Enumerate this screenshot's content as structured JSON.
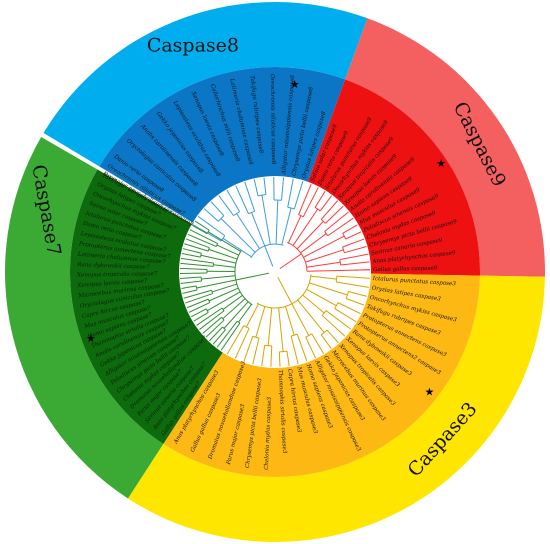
{
  "figure": {
    "clades": [
      {
        "id": "caspase8",
        "label": "Caspase8",
        "outer_color": "#00aeef",
        "inner_color": "#0b76c6",
        "branch_color": "#3c9be3",
        "marker": "★",
        "leaves": [
          "Dromaius novaehollandiae caspase8",
          "Danio rerio caspase8",
          "Oryctolagus cuniculus caspase8",
          "Anolis carolinensis caspase8",
          "Gekko japonicus caspase8",
          "Lepisosteus oculatus caspase8",
          "Xenopus laevis caspase8",
          "Callorhinchus milii caspase8",
          "Latimeria chalumnae caspase8",
          "Takifugu rubripes caspase8",
          "Oreochromis niloticus caspase8",
          "Alligator mississippiensis caspase8",
          "Chrysemys picta bellii caspase8",
          "Oryzias latipes caspase8"
        ]
      },
      {
        "id": "caspase9",
        "label": "Caspase9",
        "outer_color": "#f46060",
        "inner_color": "#ee1111",
        "branch_color": "#ff3b3b",
        "marker": "★",
        "leaves": [
          "Salmo salar caspase9",
          "Danio rerio caspase9",
          "Ictalurus punctatus caspase9",
          "Oncorhynchus mykiss caspase9",
          "Xenopus tropicalis caspase9",
          "Xenopus laevis caspase9",
          "Anolis carolinensis caspase9",
          "Homo sapiens caspase9",
          "Mus musculus caspase9",
          "Pelodiscus sinensis caspase9",
          "Chelonia mydas caspase9",
          "Chrysemys picta bellii caspase9",
          "Serinus canaria caspase9",
          "Anas platyrhynchos caspase9",
          "Gallus gallus caspase9"
        ]
      },
      {
        "id": "caspase3",
        "label": "Caspase3",
        "outer_color": "#ffe600",
        "inner_color": "#fdb813",
        "branch_color": "#d9a300",
        "marker": "★",
        "leaves": [
          "Ictalurus punctatus caspase3",
          "Oryzias latipes caspase3",
          "Oncorhynchus mykiss caspase3",
          "Takifugu rubripes caspase3",
          "Protopterus annectens caspase3",
          "Protopterus annectens2 caspase3",
          "Rana dybowskii caspase3",
          "Xenopus laevis caspase3",
          "Xenopus tropicalis caspase3",
          "Microcebus murinus caspase3",
          "Gekko japonicus caspase3",
          "Alligator mississippiensis caspase3",
          "Homo sapiens caspase3",
          "Mus musculus caspase3",
          "Capra hircus caspase3",
          "Thamnophis sirtalis caspase3",
          "Chelonia mydas caspase3",
          "Chrysemys picta bellii caspase3",
          "Parus major caspase3",
          "Dromaius novaehollandiae caspase3",
          "Gallus gallus caspase3",
          "Anas platyrhynchos caspase3"
        ]
      },
      {
        "id": "caspase7",
        "label": "Caspase7",
        "outer_color": "#3aaa35",
        "inner_color": "#0d6b0d",
        "branch_color": "#2f8f2f",
        "marker": "★",
        "leaves": [
          "Gallus gallus caspase7",
          "Anas platyrhynchos caspase7",
          "Serinus canaria caspase7",
          "Parus major caspase7",
          "Dromaius novaehollandiae caspase7",
          "Chelonia mydas caspase7",
          "Chrysemys picta bellii caspase7",
          "Pelodiscus sinensis caspase7",
          "Alligator mississippiensis caspase7",
          "Gekko japonicus caspase7",
          "Anolis carolinensis caspase7",
          "Thamnophis sirtalis caspase7",
          "Homo sapiens caspase7",
          "Mus musculus caspase7",
          "Capra hircus caspase7",
          "Oryctolagus cuniculus caspase7",
          "Microcebus murinus caspase7",
          "Xenopus laevis caspase7",
          "Xenopus tropicalis caspase7",
          "Rana dybowskii caspase7",
          "Latimeria chalumnae caspase7",
          "Protopterus annectens caspase7",
          "Lepisosteus oculatus caspase7",
          "Danio rerio caspase7",
          "Ictalurus punctatus caspase7",
          "Salmo salar caspase7",
          "Oncorhynchus mykiss caspase7",
          "Oryzias latipes caspase7",
          "Takifugu rubripes caspase7",
          "Oreochromis niloticus caspase7"
        ]
      }
    ]
  }
}
